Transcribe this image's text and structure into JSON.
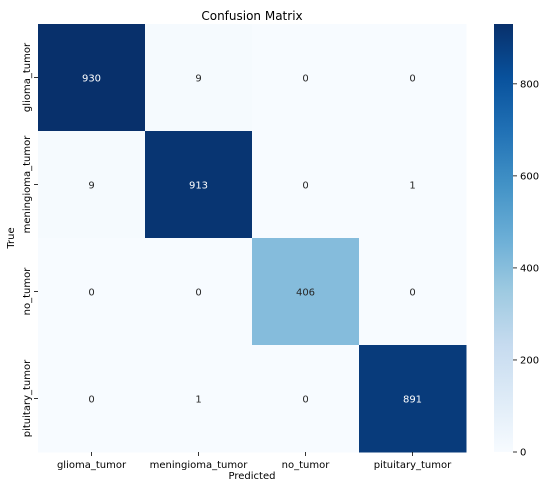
{
  "chart_data": {
    "type": "heatmap",
    "title": "Confusion Matrix",
    "xlabel": "Predicted",
    "ylabel": "True",
    "x_categories": [
      "glioma_tumor",
      "meningioma_tumor",
      "no_tumor",
      "pituitary_tumor"
    ],
    "y_categories": [
      "glioma_tumor",
      "meningioma_tumor",
      "no_tumor",
      "pituitary_tumor"
    ],
    "values": [
      [
        930,
        9,
        0,
        0
      ],
      [
        9,
        913,
        0,
        1
      ],
      [
        0,
        0,
        406,
        0
      ],
      [
        0,
        1,
        0,
        891
      ]
    ],
    "colorbar": {
      "range": [
        0,
        930
      ],
      "ticks": [
        0,
        200,
        400,
        600,
        800
      ]
    },
    "colormap": "Blues",
    "annotated": true,
    "grid": false
  }
}
